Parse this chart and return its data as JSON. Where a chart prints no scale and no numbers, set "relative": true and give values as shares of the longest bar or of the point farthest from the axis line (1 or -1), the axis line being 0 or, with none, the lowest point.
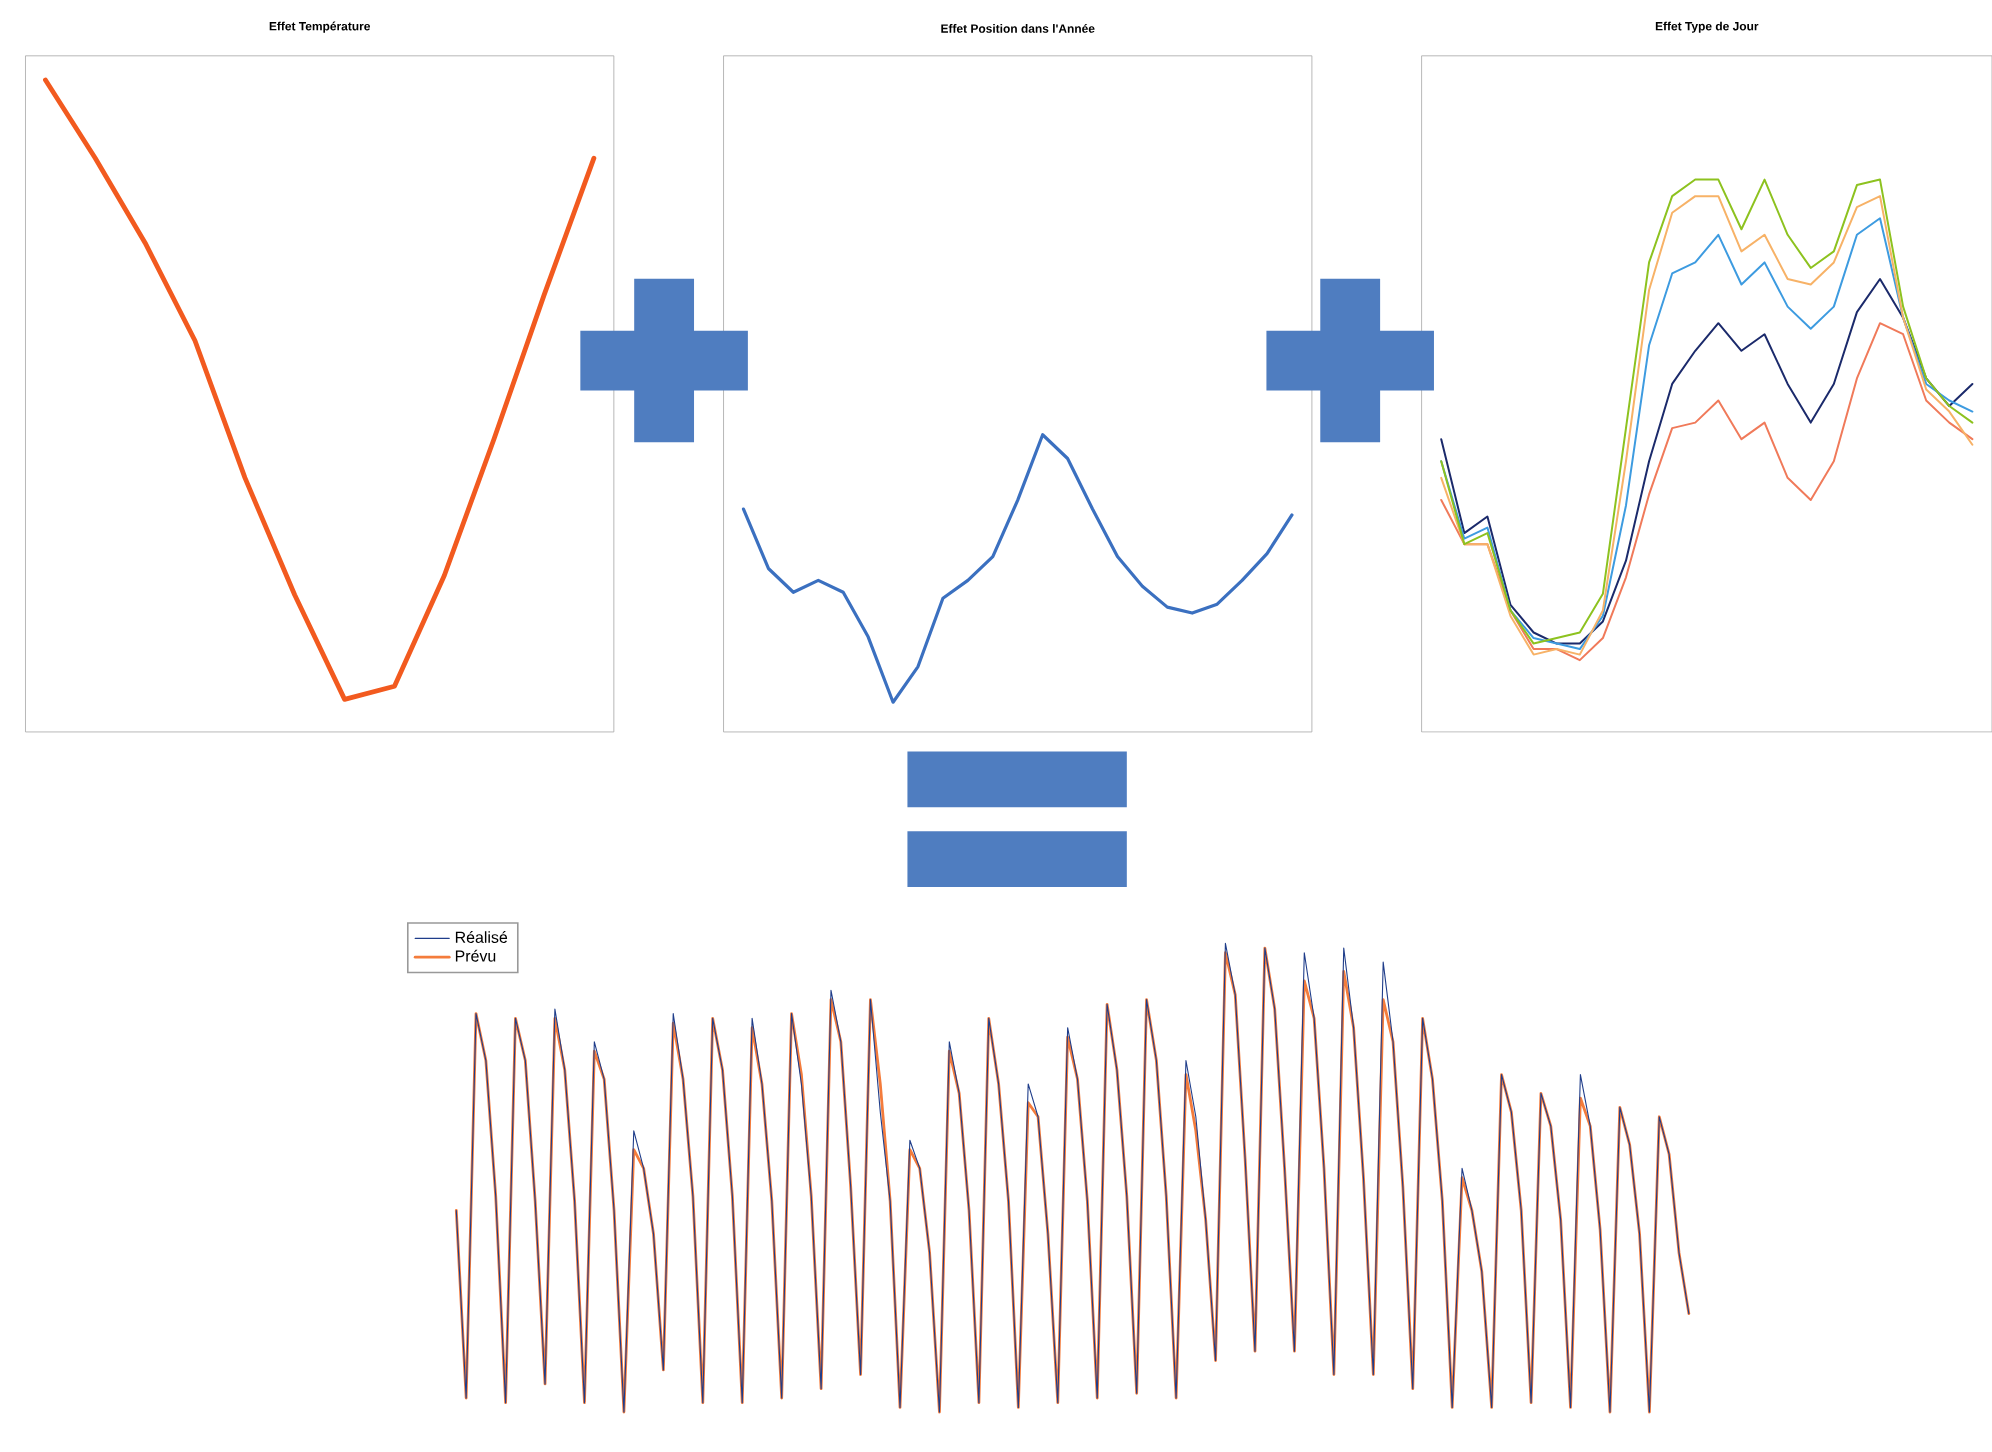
{
  "chart_data": [
    {
      "type": "line",
      "title": "Effet Température",
      "relative": true,
      "color": "#f25a1f",
      "categories": [
        null,
        null,
        null,
        null,
        null,
        null,
        null,
        null,
        null,
        null,
        null,
        null
      ],
      "values": [
        1.0,
        0.88,
        0.75,
        0.6,
        0.39,
        0.21,
        0.05,
        0.07,
        0.24,
        0.45,
        0.67,
        0.88
      ]
    },
    {
      "type": "line",
      "title": "Effet Position dans l'Année",
      "relative": true,
      "color": "#3b70c0",
      "categories": [
        null,
        null,
        null,
        null,
        null,
        null,
        null,
        null,
        null,
        null,
        null,
        null,
        null,
        null,
        null,
        null,
        null,
        null,
        null,
        null,
        null,
        null,
        null
      ],
      "values": [
        0.75,
        0.55,
        0.47,
        0.51,
        0.47,
        0.32,
        0.1,
        0.22,
        0.45,
        0.51,
        0.59,
        0.78,
        1.0,
        0.92,
        0.75,
        0.59,
        0.49,
        0.42,
        0.4,
        0.43,
        0.51,
        0.6,
        0.73
      ]
    },
    {
      "type": "line",
      "title": "Effet Type de Jour",
      "relative": true,
      "categories": [
        null,
        null,
        null,
        null,
        null,
        null,
        null,
        null,
        null,
        null,
        null,
        null,
        null,
        null,
        null,
        null,
        null,
        null,
        null,
        null,
        null,
        null,
        null,
        null
      ],
      "series": [
        {
          "color": "#f07a5a",
          "values": [
            0.42,
            0.34,
            0.34,
            0.22,
            0.15,
            0.15,
            0.13,
            0.17,
            0.28,
            0.43,
            0.55,
            0.56,
            0.6,
            0.53,
            0.56,
            0.46,
            0.42,
            0.49,
            0.64,
            0.74,
            0.72,
            0.6,
            0.56,
            0.53
          ]
        },
        {
          "color": "#1b2a6b",
          "values": [
            0.53,
            0.36,
            0.39,
            0.23,
            0.18,
            0.16,
            0.16,
            0.2,
            0.31,
            0.49,
            0.63,
            0.69,
            0.74,
            0.69,
            0.72,
            0.63,
            0.56,
            0.63,
            0.76,
            0.82,
            0.75,
            0.64,
            0.59,
            0.63
          ]
        },
        {
          "color": "#3d9be0",
          "values": [
            0.49,
            0.35,
            0.37,
            0.22,
            0.17,
            0.16,
            0.15,
            0.21,
            0.41,
            0.7,
            0.83,
            0.85,
            0.9,
            0.81,
            0.85,
            0.77,
            0.73,
            0.77,
            0.9,
            0.93,
            0.75,
            0.63,
            0.6,
            0.58
          ]
        },
        {
          "color": "#f7b267",
          "values": [
            0.46,
            0.34,
            0.34,
            0.21,
            0.14,
            0.15,
            0.14,
            0.22,
            0.49,
            0.8,
            0.94,
            0.97,
            0.97,
            0.87,
            0.9,
            0.82,
            0.81,
            0.85,
            0.95,
            0.97,
            0.75,
            0.62,
            0.58,
            0.52
          ]
        },
        {
          "color": "#8dc21f",
          "values": [
            0.49,
            0.34,
            0.36,
            0.22,
            0.16,
            0.17,
            0.18,
            0.25,
            0.55,
            0.85,
            0.97,
            1.0,
            1.0,
            0.91,
            1.0,
            0.9,
            0.84,
            0.87,
            0.99,
            1.0,
            0.77,
            0.64,
            0.59,
            0.56
          ]
        }
      ]
    },
    {
      "type": "line",
      "relative": true,
      "legend": "top left",
      "categories": [
        null,
        null,
        null,
        null,
        null,
        null,
        null,
        null,
        null,
        null,
        null,
        null,
        null,
        null,
        null,
        null,
        null,
        null,
        null,
        null,
        null,
        null,
        null,
        null,
        null,
        null,
        null,
        null,
        null,
        null,
        null,
        null,
        null,
        null,
        null,
        null,
        null,
        null,
        null,
        null,
        null,
        null,
        null,
        null,
        null,
        null,
        null,
        null,
        null,
        null,
        null,
        null,
        null,
        null,
        null,
        null,
        null,
        null,
        null,
        null,
        null,
        null,
        null,
        null,
        null,
        null,
        null,
        null,
        null,
        null,
        null,
        null,
        null,
        null,
        null,
        null,
        null,
        null,
        null,
        null,
        null,
        null,
        null,
        null,
        null,
        null,
        null,
        null,
        null,
        null,
        null,
        null,
        null,
        null,
        null,
        null,
        null,
        null,
        null,
        null,
        null,
        null,
        null,
        null,
        null,
        null,
        null,
        null,
        null,
        null,
        null,
        null,
        null,
        null,
        null,
        null,
        null,
        null,
        null,
        null,
        null,
        null,
        null,
        null,
        null,
        null
      ],
      "series": [
        {
          "name": "Réalisé",
          "color": "#1f3d8a",
          "values": [
            0.43,
            0.03,
            0.85,
            0.75,
            0.46,
            0.02,
            0.84,
            0.75,
            0.45,
            0.06,
            0.86,
            0.73,
            0.45,
            0.02,
            0.79,
            0.71,
            0.43,
            0.0,
            0.6,
            0.52,
            0.38,
            0.09,
            0.85,
            0.71,
            0.46,
            0.02,
            0.84,
            0.73,
            0.46,
            0.02,
            0.84,
            0.7,
            0.45,
            0.03,
            0.85,
            0.7,
            0.46,
            0.05,
            0.9,
            0.79,
            0.48,
            0.08,
            0.88,
            0.64,
            0.45,
            0.01,
            0.58,
            0.52,
            0.34,
            0.0,
            0.79,
            0.68,
            0.43,
            0.02,
            0.84,
            0.7,
            0.45,
            0.01,
            0.7,
            0.63,
            0.38,
            0.02,
            0.82,
            0.71,
            0.45,
            0.03,
            0.87,
            0.73,
            0.46,
            0.04,
            0.88,
            0.75,
            0.46,
            0.03,
            0.75,
            0.63,
            0.41,
            0.11,
            1.0,
            0.89,
            0.54,
            0.13,
            0.99,
            0.86,
            0.52,
            0.13,
            0.98,
            0.84,
            0.52,
            0.08,
            0.99,
            0.82,
            0.5,
            0.08,
            0.96,
            0.79,
            0.48,
            0.05,
            0.84,
            0.71,
            0.45,
            0.01,
            0.52,
            0.43,
            0.3,
            0.01,
            0.72,
            0.64,
            0.43,
            0.02,
            0.68,
            0.61,
            0.41,
            0.01,
            0.72,
            0.61,
            0.39,
            0.0,
            0.65,
            0.57,
            0.38,
            0.0,
            0.63,
            0.55,
            0.34,
            0.21
          ]
        },
        {
          "name": "Prévu",
          "color": "#f47c3c",
          "values": [
            0.43,
            0.03,
            0.85,
            0.75,
            0.46,
            0.02,
            0.84,
            0.75,
            0.45,
            0.06,
            0.84,
            0.73,
            0.45,
            0.02,
            0.77,
            0.71,
            0.43,
            0.0,
            0.56,
            0.52,
            0.38,
            0.09,
            0.83,
            0.71,
            0.46,
            0.02,
            0.84,
            0.73,
            0.46,
            0.02,
            0.82,
            0.7,
            0.45,
            0.03,
            0.85,
            0.72,
            0.46,
            0.05,
            0.88,
            0.79,
            0.48,
            0.08,
            0.88,
            0.7,
            0.45,
            0.01,
            0.56,
            0.52,
            0.34,
            0.0,
            0.77,
            0.68,
            0.43,
            0.02,
            0.84,
            0.7,
            0.45,
            0.01,
            0.66,
            0.63,
            0.38,
            0.02,
            0.8,
            0.71,
            0.45,
            0.03,
            0.87,
            0.73,
            0.46,
            0.04,
            0.88,
            0.75,
            0.46,
            0.03,
            0.72,
            0.6,
            0.41,
            0.11,
            0.98,
            0.89,
            0.54,
            0.13,
            0.99,
            0.86,
            0.52,
            0.13,
            0.92,
            0.84,
            0.52,
            0.08,
            0.94,
            0.82,
            0.5,
            0.08,
            0.88,
            0.79,
            0.48,
            0.05,
            0.84,
            0.71,
            0.45,
            0.01,
            0.5,
            0.43,
            0.3,
            0.01,
            0.72,
            0.64,
            0.43,
            0.02,
            0.68,
            0.61,
            0.41,
            0.01,
            0.67,
            0.61,
            0.39,
            0.0,
            0.65,
            0.57,
            0.38,
            0.0,
            0.63,
            0.55,
            0.34,
            0.21
          ]
        }
      ]
    }
  ]
}
